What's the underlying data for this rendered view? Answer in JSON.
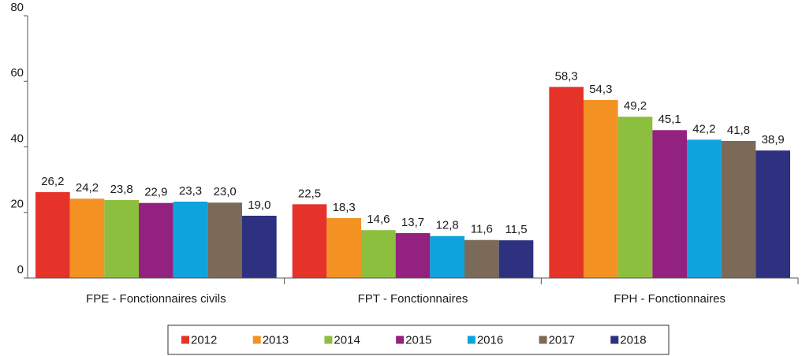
{
  "chart_data": {
    "type": "bar",
    "categories": [
      "FPE - Fonctionnaires civils",
      "FPT - Fonctionnaires",
      "FPH - Fonctionnaires"
    ],
    "series": [
      {
        "name": "2012",
        "color": "#e5332a",
        "values": [
          26.2,
          22.5,
          58.3
        ],
        "value_labels": [
          "26,2",
          "22,5",
          "58,3"
        ]
      },
      {
        "name": "2013",
        "color": "#f39223",
        "values": [
          24.2,
          18.3,
          54.3
        ],
        "value_labels": [
          "24,2",
          "18,3",
          "54,3"
        ]
      },
      {
        "name": "2014",
        "color": "#8dbf3f",
        "values": [
          23.8,
          14.6,
          49.2
        ],
        "value_labels": [
          "23,8",
          "14,6",
          "49,2"
        ]
      },
      {
        "name": "2015",
        "color": "#93217f",
        "values": [
          22.9,
          13.7,
          45.1
        ],
        "value_labels": [
          "22,9",
          "13,7",
          "45,1"
        ]
      },
      {
        "name": "2016",
        "color": "#0ea3dd",
        "values": [
          23.3,
          12.8,
          42.2
        ],
        "value_labels": [
          "23,3",
          "12,8",
          "42,2"
        ]
      },
      {
        "name": "2017",
        "color": "#7c6a58",
        "values": [
          23.0,
          11.6,
          41.8
        ],
        "value_labels": [
          "23,0",
          "11,6",
          "41,8"
        ]
      },
      {
        "name": "2018",
        "color": "#2e3080",
        "values": [
          19.0,
          11.5,
          38.9
        ],
        "value_labels": [
          "19,0",
          "11,5",
          "38,9"
        ]
      }
    ],
    "ylim": [
      0,
      80
    ],
    "yticks": [
      0,
      20,
      40,
      60,
      80
    ],
    "grid": false,
    "legend": "bottom"
  }
}
